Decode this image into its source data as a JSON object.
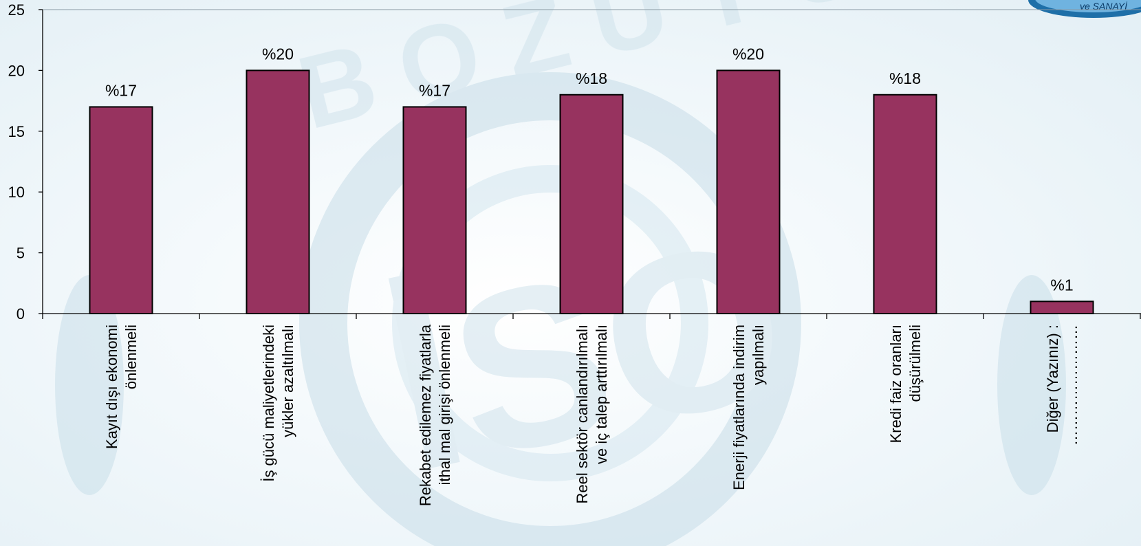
{
  "watermark": {
    "text": "BOZÜYÜK",
    "emblem_text": "İSO",
    "badge_text": "ve SANAYİ"
  },
  "chart_data": {
    "type": "bar",
    "title": "",
    "xlabel": "",
    "ylabel": "",
    "ylim": [
      0,
      25
    ],
    "yticks": [
      0,
      5,
      10,
      15,
      20,
      25
    ],
    "grid": false,
    "categories": [
      [
        "Kayıt dışı ekonomi",
        "önlenmeli"
      ],
      [
        "İş gücü maliyetlerindeki",
        "yükler azaltılmalı"
      ],
      [
        "Rekabet edilemez fiyatlarla",
        "ithal mal girişi önlenmeli"
      ],
      [
        "Reel sektör canlandırılmalı",
        "ve iç talep  arttırılmalı"
      ],
      [
        "Enerji fiyatlarında indirim",
        "yapılmalı"
      ],
      [
        "Kredi faiz oranları",
        "düşürülmeli"
      ],
      [
        "Diğer (Yazınız)  :",
        "……………………"
      ]
    ],
    "values": [
      17,
      20,
      17,
      18,
      20,
      18,
      1
    ],
    "data_labels": [
      "%17",
      "%20",
      "%17",
      "%18",
      "%20",
      "%18",
      "%1"
    ],
    "bar_color": "#97335f"
  }
}
